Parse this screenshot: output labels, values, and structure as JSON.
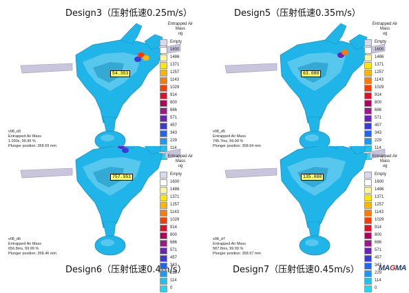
{
  "legend": {
    "title_line1": "Entrapped Air",
    "title_line2": "Mass",
    "unit": "ug",
    "empty_label": "Empty",
    "levels": [
      {
        "label": "1600",
        "color": "#ffffff"
      },
      {
        "label": "1486",
        "color": "#fff3a0"
      },
      {
        "label": "1371",
        "color": "#ffe600"
      },
      {
        "label": "1257",
        "color": "#ffb400"
      },
      {
        "label": "1143",
        "color": "#ff7a00"
      },
      {
        "label": "1029",
        "color": "#ff3c00"
      },
      {
        "label": "914",
        "color": "#e0102a"
      },
      {
        "label": "800",
        "color": "#b0005a"
      },
      {
        "label": "686",
        "color": "#9a1a8c"
      },
      {
        "label": "571",
        "color": "#6a22b8"
      },
      {
        "label": "457",
        "color": "#3d3ad8"
      },
      {
        "label": "343",
        "color": "#2266ee"
      },
      {
        "label": "229",
        "color": "#1d9af0"
      },
      {
        "label": "114",
        "color": "#19c4ee"
      },
      {
        "label": "0",
        "color": "#1fd8f4"
      }
    ]
  },
  "panels": [
    {
      "title": "Design3（压射低速0.25m/s）",
      "probe": "54.353",
      "info1": "v08_d3",
      "info2": "Entrapped Air Mass",
      "info3": "1.030s, 99.99 %",
      "info4": "Plunger position: 358.59 mm"
    },
    {
      "title": "Design5（压射低速0.35m/s）",
      "probe": "63.080",
      "info1": "v08_d5",
      "info2": "Entrapped Air Mass",
      "info3": "745.7ms, 99.99 %",
      "info4": "Plunger position: 358.64 mm"
    },
    {
      "title": "Design6（压射低速0.4m/s）",
      "probe": "757.951",
      "info1": "v08_d6",
      "info2": "Entrapped Air Mass",
      "info3": "656.8ms, 99.99 %",
      "info4": "Plunger position: 358.46 mm"
    },
    {
      "title": "Design7（压射低速0.45m/s）",
      "probe": "135.088",
      "info1": "v08_d7",
      "info2": "Entrapped Air Mass",
      "info3": "587.8ms, 99.99 %",
      "info4": "Plunger position: 358.57 mm"
    }
  ],
  "logo": {
    "left": "MA",
    "mid": "G",
    "right": "MA"
  }
}
